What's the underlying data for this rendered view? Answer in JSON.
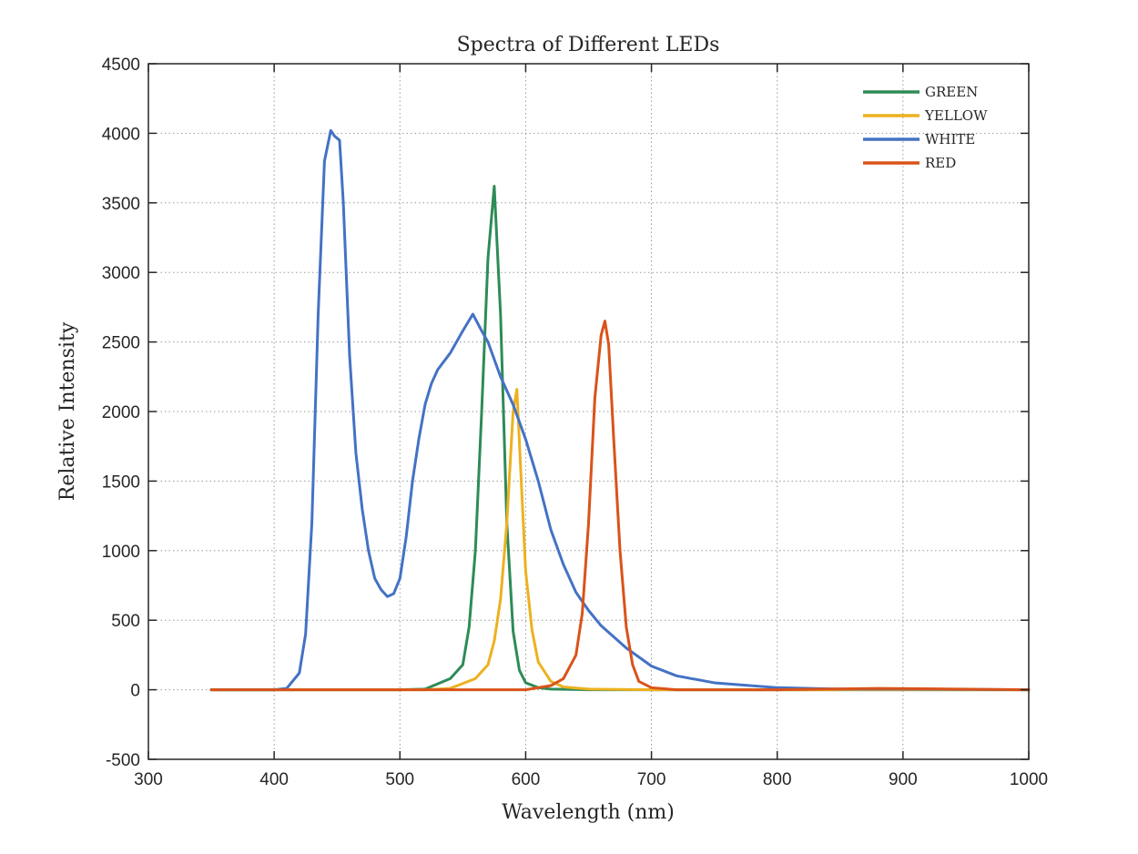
{
  "chart_data": {
    "type": "line",
    "title": "Spectra of Different LEDs",
    "xlabel": "Wavelength (nm)",
    "ylabel": "Relative Intensity",
    "xlim": [
      300,
      1000
    ],
    "ylim": [
      -500,
      4500
    ],
    "xticks": [
      "300",
      "400",
      "500",
      "600",
      "700",
      "800",
      "900",
      "1000"
    ],
    "yticks": [
      "-500",
      "0",
      "500",
      "1000",
      "1500",
      "2000",
      "2500",
      "3000",
      "3500",
      "4000",
      "4500"
    ],
    "grid": true,
    "legend_position": "top-right",
    "series": [
      {
        "name": "GREEN",
        "color": "#2e8b57",
        "x": [
          350,
          500,
          520,
          540,
          550,
          555,
          560,
          565,
          570,
          575,
          580,
          585,
          590,
          595,
          600,
          610,
          620,
          650,
          700,
          1000
        ],
        "y": [
          0,
          0,
          5,
          80,
          180,
          450,
          1000,
          2000,
          3100,
          3620,
          2700,
          1200,
          420,
          140,
          50,
          15,
          5,
          0,
          0,
          0
        ]
      },
      {
        "name": "YELLOW",
        "color": "#edb120",
        "x": [
          350,
          520,
          540,
          560,
          570,
          575,
          580,
          585,
          590,
          593,
          597,
          600,
          605,
          610,
          620,
          630,
          650,
          700,
          1000
        ],
        "y": [
          0,
          0,
          10,
          80,
          180,
          350,
          650,
          1200,
          2000,
          2160,
          1400,
          850,
          430,
          200,
          60,
          20,
          5,
          0,
          0
        ]
      },
      {
        "name": "WHITE",
        "color": "#4472c4",
        "x": [
          350,
          400,
          410,
          420,
          425,
          430,
          435,
          440,
          445,
          448,
          452,
          455,
          460,
          465,
          470,
          475,
          480,
          485,
          490,
          495,
          500,
          505,
          510,
          515,
          520,
          525,
          530,
          540,
          550,
          558,
          565,
          570,
          580,
          590,
          600,
          610,
          620,
          630,
          640,
          650,
          660,
          680,
          700,
          720,
          750,
          800,
          850,
          900,
          1000
        ],
        "y": [
          0,
          0,
          10,
          120,
          400,
          1200,
          2700,
          3800,
          4020,
          3980,
          3950,
          3500,
          2400,
          1700,
          1300,
          1000,
          800,
          720,
          670,
          690,
          800,
          1100,
          1500,
          1800,
          2050,
          2200,
          2300,
          2420,
          2580,
          2700,
          2580,
          2500,
          2250,
          2050,
          1800,
          1500,
          1150,
          900,
          700,
          570,
          460,
          300,
          170,
          100,
          50,
          15,
          5,
          5,
          0
        ]
      },
      {
        "name": "RED",
        "color": "#d95319",
        "x": [
          350,
          600,
          620,
          630,
          640,
          645,
          650,
          655,
          660,
          663,
          666,
          670,
          675,
          680,
          685,
          690,
          700,
          720,
          800,
          880,
          1000
        ],
        "y": [
          0,
          0,
          30,
          80,
          250,
          550,
          1200,
          2100,
          2550,
          2650,
          2480,
          1800,
          1000,
          450,
          180,
          60,
          15,
          0,
          0,
          10,
          0
        ]
      }
    ]
  }
}
